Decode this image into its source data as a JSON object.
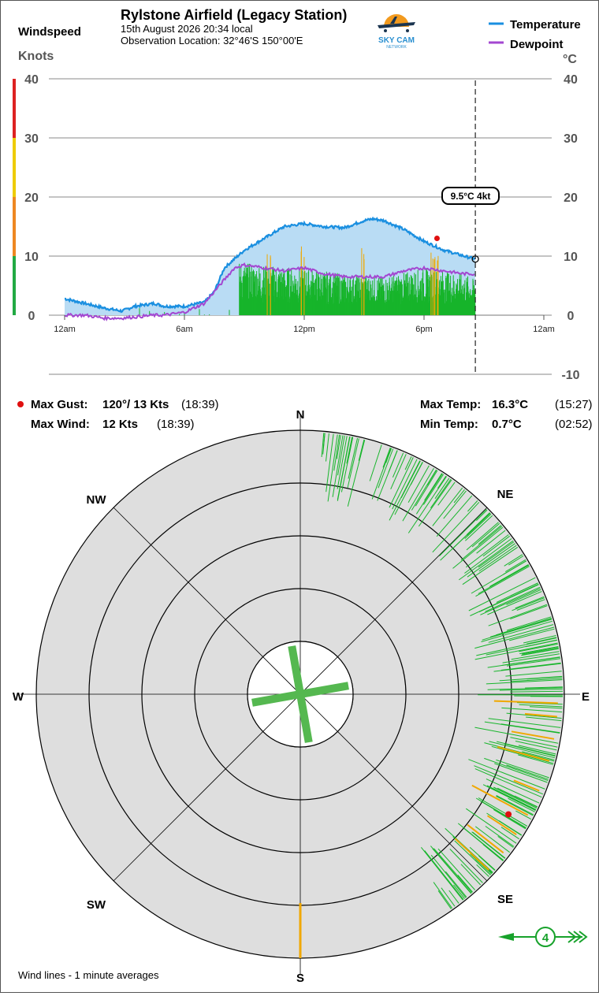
{
  "header": {
    "station": "Rylstone Airfield (Legacy Station)",
    "datetime": "15th August 2026  20:34 local",
    "location": "Observation Location: 32°46'S 150°00'E",
    "logo_text": "SKY CAM",
    "logo_subtext": "NETWORK",
    "windspeed_label": "Windspeed",
    "knots_label": "Knots",
    "celsius_label": "°C"
  },
  "legend": {
    "temperature": "Temperature",
    "dewpoint": "Dewpoint"
  },
  "colors": {
    "temperature": "#1a8fe0",
    "temperature_fill": "#b9dcf4",
    "dewpoint": "#a347d1",
    "wind_green": "#17b52b",
    "gust_orange": "#f0a800",
    "gust_marker": "#e01010",
    "grid": "#777777",
    "rose_bg": "#dedede",
    "windbar": [
      "#22aa44",
      "#ee8822",
      "#eecc00",
      "#dd2222"
    ]
  },
  "tooltip": "9.5°C  4kt",
  "stats": {
    "max_gust_label": "Max Gust:",
    "max_gust_value": "120°/  13 Kts",
    "max_gust_time": "(18:39)",
    "max_wind_label": "Max Wind:",
    "max_wind_value": "12 Kts",
    "max_wind_time": "(18:39)",
    "max_temp_label": "Max Temp:",
    "max_temp_value": "16.3°C",
    "max_temp_time": "(15:27)",
    "min_temp_label": "Min Temp:",
    "min_temp_value": "0.7°C",
    "min_temp_time": "(02:52)"
  },
  "compass": {
    "n": "N",
    "ne": "NE",
    "e": "E",
    "se": "SE",
    "s": "S",
    "sw": "SW",
    "w": "W",
    "nw": "NW"
  },
  "current_wind": "4",
  "footer_note": "Wind lines - 1 minute averages",
  "chart_data": {
    "type": "line",
    "x_ticks": [
      "12am",
      "6am",
      "12pm",
      "6pm",
      "12am"
    ],
    "x_range_hours": [
      0,
      24
    ],
    "current_hour": 20.57,
    "wind_axis": {
      "label": "Knots",
      "range": [
        0,
        40
      ],
      "ticks": [
        0,
        10,
        20,
        30,
        40
      ]
    },
    "temp_axis": {
      "label": "°C",
      "range": [
        -10,
        40
      ],
      "ticks": [
        -10,
        0,
        10,
        20,
        30,
        40
      ]
    },
    "series": [
      {
        "name": "Temperature",
        "hours": [
          0,
          1,
          2,
          2.87,
          3.5,
          4.5,
          5,
          6,
          7,
          7.5,
          8,
          8.5,
          9,
          10,
          11,
          12,
          13,
          14,
          15,
          15.45,
          16,
          17,
          18,
          19,
          20,
          20.57
        ],
        "values": [
          2.8,
          2,
          1.2,
          0.7,
          1.5,
          2,
          1.5,
          1.5,
          2.2,
          4,
          8,
          9.5,
          11,
          13,
          15,
          15.5,
          15,
          14.8,
          16,
          16.3,
          16,
          14.5,
          12.5,
          11,
          10,
          9.5
        ]
      },
      {
        "name": "Dewpoint",
        "hours": [
          0,
          1,
          2,
          2.87,
          3.5,
          4.5,
          5,
          6,
          7,
          7.5,
          8,
          8.5,
          9,
          10,
          11,
          12,
          13,
          14,
          15,
          16,
          17,
          18,
          19,
          20,
          20.57
        ],
        "values": [
          0,
          0,
          -0.5,
          -0.5,
          -0.3,
          0,
          0,
          0.5,
          2,
          4,
          6,
          8,
          8.5,
          8,
          7.5,
          8,
          7,
          6.5,
          6.5,
          6.5,
          7.5,
          8,
          7.5,
          7,
          7
        ]
      }
    ],
    "wind_envelope": {
      "hours": [
        8.75,
        10,
        12,
        14,
        16,
        18,
        19,
        20,
        20.57
      ],
      "knots": [
        9,
        8.5,
        8,
        7,
        6.5,
        8,
        7.5,
        7,
        6
      ]
    },
    "gust_hours": [
      10.3,
      12,
      14.8,
      18.4,
      18.65
    ],
    "max_gust_marker": {
      "hour": 18.65,
      "knots": 13
    },
    "rose": {
      "speed_rings": [
        2,
        4,
        6,
        8,
        10
      ],
      "runway_headings_deg": [
        80,
        170
      ],
      "gust_marker": {
        "direction_deg": 120,
        "knots": 13
      },
      "current_direction_deg": 90
    }
  }
}
